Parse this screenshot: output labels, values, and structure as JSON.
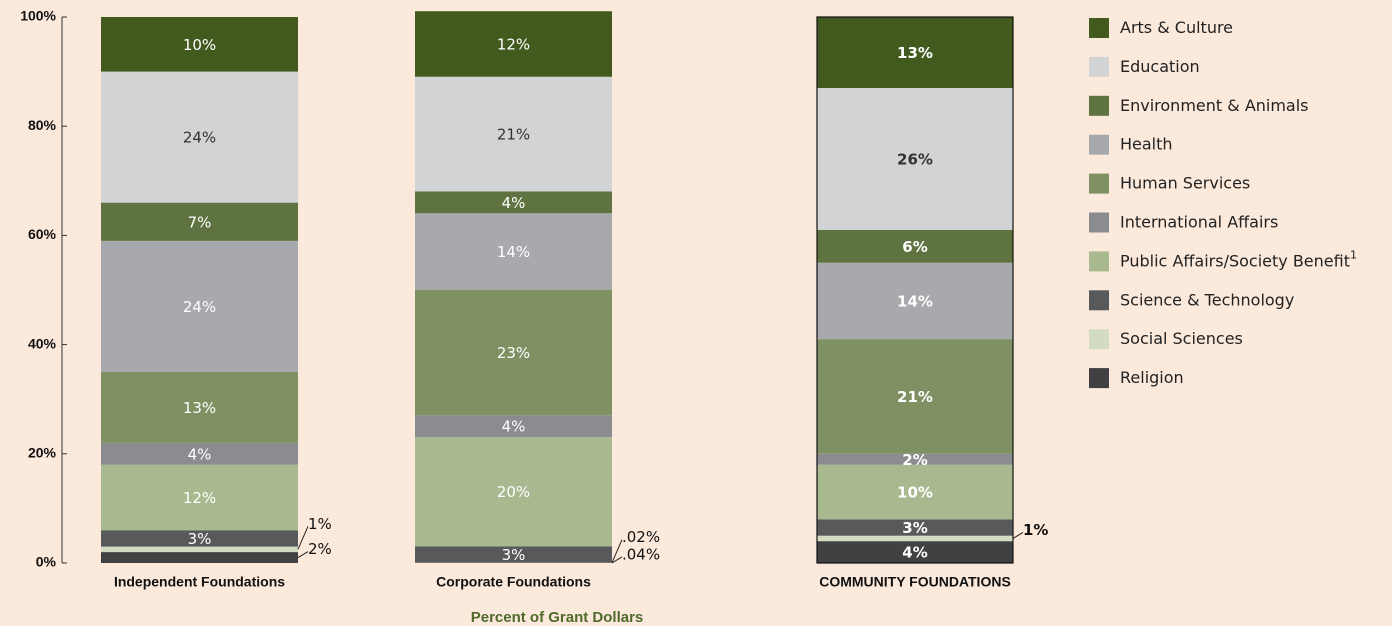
{
  "chart_data": {
    "type": "stacked-bar",
    "categories": [
      "Independent Foundations",
      "Corporate Foundations",
      "COMMUNITY FOUNDATIONS"
    ],
    "x_label": "Percent of Grant Dollars",
    "ylim": [
      0,
      100
    ],
    "yticks": [
      {
        "value": 0,
        "label": "0%"
      },
      {
        "value": 20,
        "label": "20%"
      },
      {
        "value": 40,
        "label": "40%"
      },
      {
        "value": 60,
        "label": "60%"
      },
      {
        "value": 80,
        "label": "80%"
      },
      {
        "value": 100,
        "label": "100%"
      }
    ],
    "series": [
      {
        "name": "Religion",
        "color": "#414042",
        "values": [
          2,
          0.04,
          4
        ],
        "value_labels": [
          "2%",
          ".04%",
          "4%"
        ]
      },
      {
        "name": "Social Sciences",
        "color": "#d3dbc3",
        "values": [
          1,
          0.02,
          1
        ],
        "value_labels": [
          "1%",
          ".02%",
          "1%"
        ]
      },
      {
        "name": "Science & Technology",
        "color": "#58595b",
        "values": [
          3,
          3,
          3
        ],
        "value_labels": [
          "3%",
          "3%",
          "3%"
        ]
      },
      {
        "name": "Public Affairs/Society Benefit",
        "note": "1",
        "color": "#a9b98f",
        "values": [
          12,
          20,
          10
        ],
        "value_labels": [
          "12%",
          "20%",
          "10%"
        ]
      },
      {
        "name": "International Affairs",
        "color": "#8a8c8f",
        "values": [
          4,
          4,
          2
        ],
        "value_labels": [
          "4%",
          "4%",
          "2%"
        ]
      },
      {
        "name": "Human Services",
        "color": "#7f9163",
        "values": [
          13,
          23,
          21
        ],
        "value_labels": [
          "13%",
          "23%",
          "21%"
        ]
      },
      {
        "name": "Health",
        "color": "#a7a9ac",
        "values": [
          24,
          14,
          14
        ],
        "value_labels": [
          "24%",
          "14%",
          "14%"
        ]
      },
      {
        "name": "Environment & Animals",
        "color": "#5f7340",
        "values": [
          7,
          4,
          6
        ],
        "value_labels": [
          "7%",
          "4%",
          "6%"
        ]
      },
      {
        "name": "Education",
        "color": "#d1d3d4",
        "values": [
          24,
          21,
          26
        ],
        "value_labels": [
          "24%",
          "21%",
          "26%"
        ]
      },
      {
        "name": "Arts & Culture",
        "color": "#435a1f",
        "values": [
          10,
          12,
          13
        ],
        "value_labels": [
          "10%",
          "12%",
          "13%"
        ]
      }
    ]
  }
}
